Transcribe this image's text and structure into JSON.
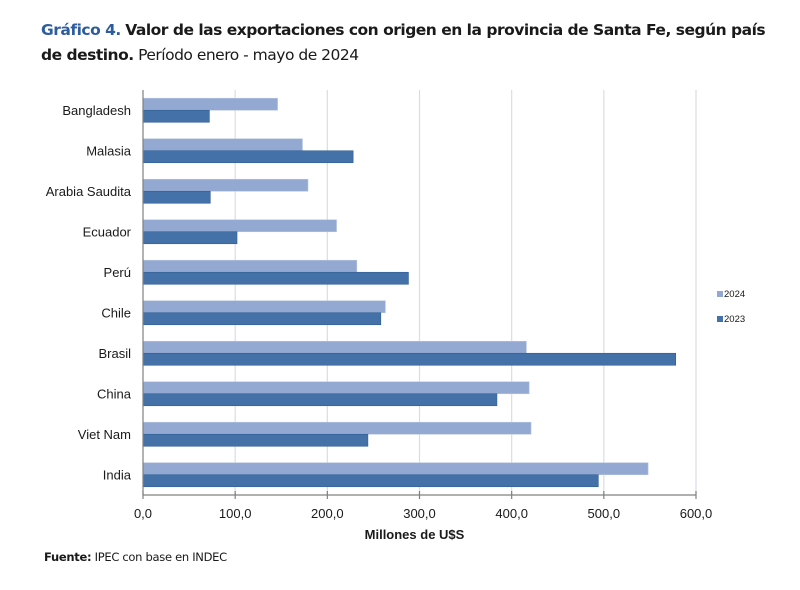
{
  "header": {
    "number": "Gráfico 4.",
    "title_bold": "Valor de las exportaciones con origen en la provincia de Santa Fe, según país de destino.",
    "title_rest": "Período enero - mayo de 2024"
  },
  "footer": {
    "source_label": "Fuente:",
    "source_text": "IPEC con base en INDEC"
  },
  "chart_data": {
    "type": "bar",
    "orientation": "horizontal",
    "title": "Gráfico 4. Valor de las exportaciones con origen en la provincia de Santa Fe, según país de destino. Período enero - mayo de 2024",
    "xlabel": "Millones de U$S",
    "ylabel": "",
    "categories": [
      "Bangladesh",
      "Malasia",
      "Arabia Saudita",
      "Ecuador",
      "Perú",
      "Chile",
      "Brasil",
      "China",
      "Viet Nam",
      "India"
    ],
    "series": [
      {
        "name": "2024",
        "color": "#93a9d2",
        "values": [
          146,
          173,
          179,
          210,
          232,
          263,
          416,
          419,
          421,
          548
        ]
      },
      {
        "name": "2023",
        "color": "#4472a8",
        "values": [
          72,
          228,
          73,
          102,
          288,
          258,
          578,
          384,
          244,
          494
        ]
      }
    ],
    "xlim": [
      0,
      600
    ],
    "xticks": [
      0,
      100,
      200,
      300,
      400,
      500,
      600
    ],
    "xtick_labels": [
      "0,0",
      "100,0",
      "200,0",
      "300,0",
      "400,0",
      "500,0",
      "600,0"
    ],
    "grid": true,
    "legend": {
      "position": "right",
      "entries": [
        "2024",
        "2023"
      ]
    }
  }
}
